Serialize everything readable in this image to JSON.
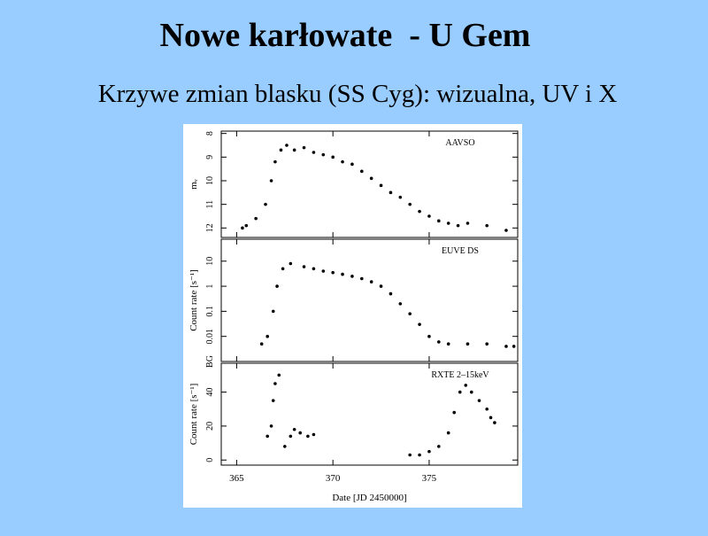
{
  "title": "Nowe karłowate  - U Gem",
  "subtitle": "Krzywe zmian blasku (SS Cyg): wizualna, UV i X",
  "chart_data": [
    {
      "type": "scatter",
      "annotation": "AAVSO",
      "y_label": "mᵥ",
      "x": [
        365.3,
        365.5,
        366.0,
        366.5,
        366.8,
        367.0,
        367.3,
        367.6,
        368.0,
        368.5,
        369.0,
        369.5,
        370.0,
        370.5,
        371.0,
        371.5,
        372.0,
        372.5,
        373.0,
        373.5,
        374.0,
        374.5,
        375.0,
        375.5,
        376.0,
        376.5,
        377.0,
        378.0,
        379.0
      ],
      "values": [
        12.0,
        11.9,
        11.6,
        11.0,
        10.0,
        9.2,
        8.7,
        8.5,
        8.7,
        8.6,
        8.8,
        8.9,
        9.0,
        9.2,
        9.3,
        9.6,
        9.9,
        10.2,
        10.5,
        10.7,
        11.0,
        11.3,
        11.5,
        11.7,
        11.8,
        11.9,
        11.8,
        11.9,
        12.1
      ],
      "xlim": [
        364.2,
        379.6
      ],
      "ylim": [
        12.4,
        7.9
      ],
      "yticks": [
        8,
        9,
        10,
        11,
        12
      ],
      "color": "#000000"
    },
    {
      "type": "scatter",
      "annotation": "EUVE DS",
      "y_label": "Count rate [s⁻¹]",
      "log_y": true,
      "x": [
        366.3,
        366.6,
        366.9,
        367.1,
        367.4,
        367.8,
        368.5,
        369.0,
        369.5,
        370.0,
        370.5,
        371.0,
        371.5,
        372.0,
        372.5,
        373.0,
        373.5,
        374.0,
        374.5,
        375.0,
        375.5,
        376.0,
        377.0,
        378.0,
        379.0,
        379.4
      ],
      "values": [
        0.005,
        0.01,
        0.1,
        1,
        5,
        8,
        6,
        5,
        4,
        3.5,
        3,
        2.5,
        2,
        1.5,
        1,
        0.5,
        0.2,
        0.08,
        0.03,
        0.01,
        0.006,
        0.005,
        0.005,
        0.005,
        0.004,
        0.004
      ],
      "xlim": [
        364.2,
        379.6
      ],
      "ylim": [
        0.001,
        75
      ],
      "yticks": [
        {
          "value": 0.001,
          "label": "BG"
        },
        0.01,
        0.1,
        1,
        10
      ],
      "color": "#000000"
    },
    {
      "type": "scatter",
      "annotation": "RXTE 2–15keV",
      "y_label": "Count rate [s⁻¹]",
      "x_label": "Date [JD 2450000]",
      "x": [
        366.6,
        366.8,
        366.9,
        367.0,
        367.2,
        367.5,
        367.8,
        368.0,
        368.3,
        368.7,
        369.0,
        374.0,
        374.5,
        375.0,
        375.5,
        376.0,
        376.3,
        376.6,
        376.9,
        377.2,
        377.6,
        378.0,
        378.2,
        378.4
      ],
      "values": [
        14,
        20,
        35,
        45,
        50,
        8,
        14,
        18,
        16,
        14,
        15,
        3,
        3,
        5,
        8,
        16,
        28,
        40,
        44,
        40,
        35,
        30,
        25,
        22
      ],
      "xlim": [
        364.2,
        379.6
      ],
      "ylim": [
        -3,
        57
      ],
      "yticks": [
        0,
        20,
        40
      ],
      "xticks": [
        365,
        370,
        375
      ],
      "color": "#000000"
    }
  ]
}
